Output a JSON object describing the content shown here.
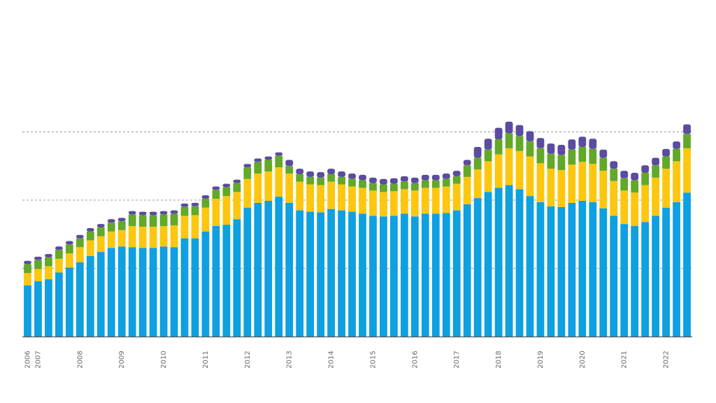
{
  "chart_data": {
    "type": "bar",
    "stacked": true,
    "title": "",
    "xlabel": "",
    "ylabel": "",
    "grid": "horizontal-dashed",
    "legend": "none",
    "ylim": [
      0,
      360
    ],
    "gridlines": [
      100,
      200,
      300
    ],
    "year_labels": [
      {
        "label": "2006",
        "bar_index": 0
      },
      {
        "label": "2007",
        "bar_index": 1
      },
      {
        "label": "2008",
        "bar_index": 5
      },
      {
        "label": "2009",
        "bar_index": 9
      },
      {
        "label": "2010",
        "bar_index": 13
      },
      {
        "label": "2011",
        "bar_index": 17
      },
      {
        "label": "2012",
        "bar_index": 21
      },
      {
        "label": "2013",
        "bar_index": 25
      },
      {
        "label": "2014",
        "bar_index": 29
      },
      {
        "label": "2015",
        "bar_index": 33
      },
      {
        "label": "2016",
        "bar_index": 37
      },
      {
        "label": "2017",
        "bar_index": 41
      },
      {
        "label": "2018",
        "bar_index": 45
      },
      {
        "label": "2019",
        "bar_index": 49
      },
      {
        "label": "2020",
        "bar_index": 53
      },
      {
        "label": "2021",
        "bar_index": 57
      },
      {
        "label": "2022",
        "bar_index": 61
      }
    ],
    "series": [
      {
        "color": "#0ea0e0",
        "values": [
          75,
          81,
          84,
          94,
          101,
          109,
          118,
          124,
          130,
          132,
          131,
          130,
          130,
          132,
          131,
          144,
          144,
          154,
          162,
          164,
          172,
          189,
          196,
          199,
          205,
          196,
          185,
          183,
          182,
          187,
          185,
          183,
          180,
          177,
          176,
          177,
          180,
          176,
          180,
          180,
          181,
          185,
          194,
          203,
          212,
          218,
          222,
          216,
          206,
          197,
          191,
          190,
          196,
          199,
          197,
          188,
          177,
          165,
          162,
          168,
          177,
          189,
          197,
          211
        ]
      },
      {
        "color": "#fcc70e",
        "values": [
          18,
          18,
          19,
          20,
          21,
          22,
          23,
          23,
          24,
          24,
          31,
          31,
          31,
          30,
          32,
          33,
          34,
          35,
          40,
          42,
          40,
          42,
          43,
          43,
          43,
          43,
          42,
          40,
          40,
          40,
          38,
          37,
          38,
          37,
          36,
          36,
          36,
          38,
          38,
          38,
          39,
          39,
          40,
          42,
          45,
          49,
          54,
          56,
          58,
          57,
          55,
          54,
          56,
          57,
          56,
          55,
          51,
          49,
          49,
          54,
          56,
          57,
          60,
          65
        ]
      },
      {
        "color": "#62a829",
        "values": [
          13,
          13,
          13,
          13,
          13,
          13,
          13,
          13,
          13,
          13,
          17,
          17,
          17,
          17,
          17,
          13,
          13,
          13,
          13,
          13,
          13,
          17,
          17,
          17,
          17,
          11,
          11,
          11,
          11,
          11,
          11,
          11,
          11,
          11,
          11,
          11,
          11,
          11,
          11,
          11,
          11,
          11,
          17,
          17,
          17,
          22,
          22,
          22,
          22,
          22,
          22,
          22,
          22,
          22,
          22,
          19,
          18,
          18,
          18,
          18,
          18,
          18,
          18,
          21
        ]
      },
      {
        "color": "#5b4ba1",
        "values": [
          5,
          5,
          5,
          5,
          5,
          5,
          5,
          5,
          5,
          5,
          5,
          5,
          5,
          5,
          5,
          5,
          5,
          5,
          5,
          5,
          5,
          5,
          5,
          5,
          5,
          9,
          8,
          8,
          8,
          8,
          8,
          8,
          8,
          8,
          8,
          8,
          8,
          8,
          8,
          8,
          8,
          8,
          8,
          16,
          16,
          17,
          17,
          16,
          15,
          15,
          15,
          15,
          15,
          15,
          15,
          12,
          11,
          11,
          11,
          11,
          11,
          11,
          11,
          14
        ]
      }
    ]
  }
}
